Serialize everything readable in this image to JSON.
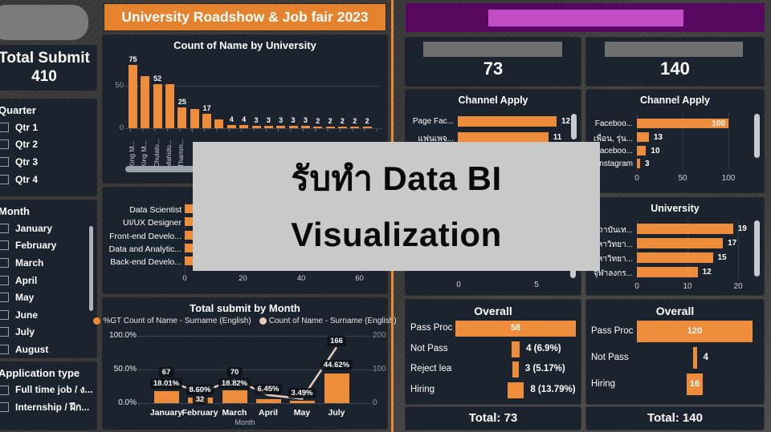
{
  "header": {
    "title": "University Roadshow & Job fair 2023"
  },
  "watermark": {
    "line1": "รับทำ Data BI",
    "line2": "Visualization"
  },
  "sidebar": {
    "total_submit": {
      "label": "Total Submit",
      "value": "410"
    },
    "quarter": {
      "title": "Quarter",
      "items": [
        "Qtr 1",
        "Qtr 2",
        "Qtr 3",
        "Qtr 4"
      ]
    },
    "month": {
      "title": "Month",
      "items": [
        "January",
        "February",
        "March",
        "April",
        "May",
        "June",
        "July",
        "August"
      ]
    },
    "application_type": {
      "title": "Application type",
      "items": [
        "Full time job / ง...",
        "Internship / ฝึก..."
      ]
    }
  },
  "kpi": {
    "left_value": "73",
    "right_value": "140",
    "left_total": "Total: 73",
    "right_total": "Total: 140"
  },
  "colors": {
    "accent": "#ED8C3B",
    "panel": "#1B232E",
    "banner_purple": "#56095E",
    "banner_magenta": "#C14CC6",
    "redact_gray": "#6F6F6F",
    "line_series": "#E7CBBC",
    "watermark_bg": "#C9C9C9"
  },
  "chart_data": [
    {
      "id": "count_of_name_by_university",
      "type": "bar",
      "title": "Count of Name by University",
      "categories_visible": [
        "King M...",
        "King M...",
        "Chulalo...",
        "Mahido...",
        "Thamm..."
      ],
      "values": [
        75,
        61,
        52,
        52,
        25,
        23,
        17,
        10,
        4,
        4,
        3,
        3,
        3,
        3,
        3,
        2,
        2,
        2,
        2,
        2
      ],
      "label_shown": [
        true,
        false,
        true,
        false,
        true,
        false,
        true,
        false,
        true,
        true,
        true,
        true,
        true,
        true,
        true,
        true,
        true,
        true,
        true,
        true
      ],
      "yticks": [
        "50",
        "0"
      ],
      "ylim": [
        0,
        80
      ],
      "gridline_at": 50,
      "note": "values at indices 1,5,7 estimated from bar heights; category labels after 5th occluded by watermark"
    },
    {
      "id": "positions",
      "type": "bar-horizontal",
      "title": "",
      "categories": [
        "Data Scientist",
        "UI/UX Designer",
        "Front-end Develo...",
        "Data and Analytic...",
        "Back-end Develo..."
      ],
      "values_occluded": true,
      "xticks": [
        "0",
        "20",
        "40",
        "60"
      ]
    },
    {
      "id": "total_submit_by_month",
      "type": "combo",
      "title": "Total submit by Month",
      "xlabel": "Month",
      "categories": [
        "January",
        "February",
        "March",
        "April",
        "May",
        "July"
      ],
      "series": [
        {
          "name": "%GT Count of Name - Surname (English)",
          "type": "bar",
          "values_pct": [
            18.01,
            8.6,
            18.82,
            6.45,
            3.49,
            44.62
          ],
          "labels": [
            "18.01%",
            "8.60%",
            "18.82%",
            "6.45%",
            "3.49%",
            "44.62%"
          ]
        },
        {
          "name": "Count of Name - Surname (English)",
          "type": "line",
          "values": [
            67,
            32,
            70,
            24,
            13,
            166
          ],
          "labels_shown": [
            true,
            true,
            true,
            false,
            false,
            true
          ],
          "note": "April/May counts estimated from line; labels not visible"
        }
      ],
      "left_axis": [
        "100.0%",
        "50.0%",
        "0.0%"
      ],
      "right_axis": [
        "200",
        "100",
        "0"
      ]
    },
    {
      "id": "channel_apply_left",
      "type": "bar-horizontal",
      "title": "Channel Apply",
      "rows": [
        {
          "label": "Page Fac...",
          "value": 12
        },
        {
          "label": "แฟนเพจ...",
          "value": 11
        }
      ],
      "xmax": 14,
      "note": "rows below occluded by watermark"
    },
    {
      "id": "channel_apply_right",
      "type": "bar-horizontal",
      "title": "Channel Apply",
      "rows": [
        {
          "label": "Faceboo...",
          "value": 100
        },
        {
          "label": "เพื่อน, รุ่น...",
          "value": 13
        },
        {
          "label": "Faceboo...",
          "value": 10
        },
        {
          "label": "Instagram",
          "value": 3
        }
      ],
      "xticks": [
        "0",
        "50",
        "100"
      ],
      "xmax": 100
    },
    {
      "id": "university_left",
      "type": "bar-horizontal",
      "title": "",
      "rows_occluded": true,
      "xticks": [
        "0",
        "5"
      ]
    },
    {
      "id": "university_right",
      "type": "bar-horizontal",
      "title": "University",
      "rows": [
        {
          "label": "สถาบันเท...",
          "value": 19
        },
        {
          "label": "มหาวิทยา...",
          "value": 17
        },
        {
          "label": "มหาวิทยา...",
          "value": 15
        },
        {
          "label": "จุฬาลงกร...",
          "value": 12
        }
      ],
      "xticks": [
        "0",
        "10",
        "20"
      ],
      "xmax": 20
    },
    {
      "id": "overall_left",
      "type": "funnel",
      "title": "Overall",
      "rows": [
        {
          "label": "Pass Process",
          "value": 58,
          "value_label": "58",
          "label_inside": true
        },
        {
          "label": "Not Pass",
          "value": 4,
          "value_label": "4 (6.9%)",
          "label_inside": false
        },
        {
          "label": "Reject lear...",
          "value": 3,
          "value_label": "3 (5.17%)",
          "label_inside": false
        },
        {
          "label": "Hiring",
          "value": 8,
          "value_label": "8 (13.79%)",
          "label_inside": false
        }
      ]
    },
    {
      "id": "overall_right",
      "type": "funnel",
      "title": "Overall",
      "rows": [
        {
          "label": "Pass Proc...",
          "value": 120,
          "value_label": "120",
          "label_inside": true
        },
        {
          "label": "Not Pass",
          "value": 4,
          "value_label": "4",
          "label_inside": false
        },
        {
          "label": "Hiring",
          "value": 16,
          "value_label": "16",
          "label_inside": true
        }
      ]
    }
  ]
}
